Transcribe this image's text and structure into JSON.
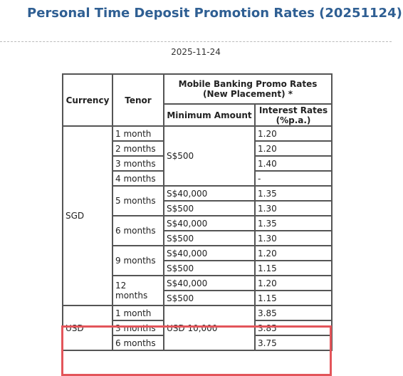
{
  "title": "Personal Time Deposit Promotion Rates (20251124)",
  "date": "2025-11-24",
  "table": {
    "header": [
      [
        "Currency",
        "Tenor",
        "Mobile Banking Promo Rates (New Placement) *"
      ],
      [
        "Minimum Amount",
        "Interest Rates (%p.a.)"
      ]
    ],
    "rows": [
      [
        "SGD",
        "1 month",
        "S$500",
        "1.20"
      ],
      [
        "2 months",
        "1.20"
      ],
      [
        "3 months",
        "1.40"
      ],
      [
        "4 months",
        "-"
      ],
      [
        "5 months",
        "S$40,000",
        "1.35"
      ],
      [
        "S$500",
        "1.30"
      ],
      [
        "6 months",
        "S$40,000",
        "1.35"
      ],
      [
        "S$500",
        "1.30"
      ],
      [
        "9 months",
        "S$40,000",
        "1.20"
      ],
      [
        "S$500",
        "1.15"
      ],
      [
        "12 months",
        "S$40,000",
        "1.20"
      ],
      [
        "S$500",
        "1.15"
      ],
      [
        "USD",
        "1 month",
        "USD 10,000",
        "3.85"
      ],
      [
        "3 months",
        "3.85"
      ],
      [
        "6 months",
        "3.75"
      ]
    ]
  }
}
